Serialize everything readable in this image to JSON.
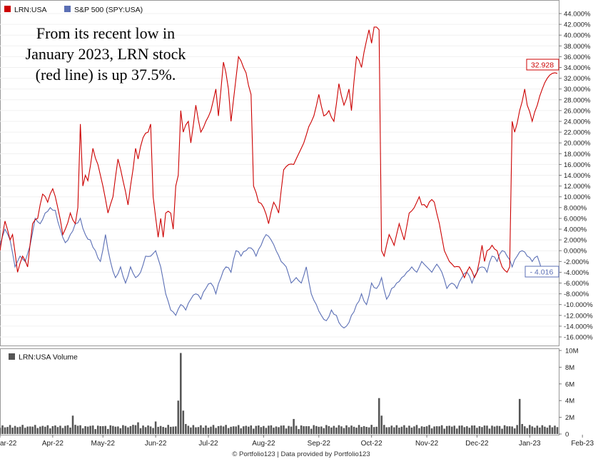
{
  "chart_data": {
    "type": "line",
    "annotation": [
      "From its recent low in",
      "January 2023, LRN stock",
      "(red line) is up 37.5%."
    ],
    "footer": "© Portfolio123 | Data provided by Portfolio123",
    "colors": {
      "lrn": "#cc0000",
      "spy": "#5b6fb5",
      "volume": "#555555"
    },
    "y_axis": {
      "min": -16,
      "max": 44,
      "step": 2,
      "unit": "%",
      "side": "right",
      "tick_labels": [
        "44.000%",
        "42.000%",
        "40.000%",
        "38.000%",
        "36.000%",
        "34.000%",
        "32.000%",
        "30.000%",
        "28.000%",
        "26.000%",
        "24.000%",
        "22.000%",
        "20.000%",
        "18.000%",
        "16.000%",
        "14.000%",
        "12.000%",
        "10.000%",
        "8.000%",
        "6.000%",
        "4.000%",
        "2.000%",
        "0.000%",
        "-2.000%",
        "-4.000%",
        "-6.000%",
        "-8.000%",
        "-10.000%",
        "-12.000%",
        "-14.000%",
        "-16.000%"
      ]
    },
    "x_tick_labels": [
      "Mar-22",
      "Apr-22",
      "May-22",
      "Jun-22",
      "Jul-22",
      "Aug-22",
      "Sep-22",
      "Oct-22",
      "Nov-22",
      "Dec-22",
      "Jan-23",
      "Feb-23"
    ],
    "x_tick_index": [
      0,
      21,
      41,
      62,
      83,
      105,
      127,
      148,
      170,
      190,
      211,
      232
    ],
    "legend": [
      {
        "name": "LRN:USA",
        "color": "#cc0000"
      },
      {
        "name": "S&P 500 (SPY:USA)",
        "color": "#5b6fb5"
      }
    ],
    "last_value_labels": {
      "lrn": "32.928",
      "spy": "- 4.016"
    },
    "series": [
      {
        "name": "LRN:USA",
        "key": "lrn",
        "anchors": [
          [
            0,
            0
          ],
          [
            2,
            5.5
          ],
          [
            4,
            2
          ],
          [
            5,
            3
          ],
          [
            7,
            -4
          ],
          [
            9,
            -1
          ],
          [
            11,
            -3
          ],
          [
            13,
            5
          ],
          [
            15,
            6
          ],
          [
            17,
            10.5
          ],
          [
            19,
            9
          ],
          [
            21,
            11.5
          ],
          [
            23,
            8
          ],
          [
            25,
            3
          ],
          [
            26,
            4
          ],
          [
            28,
            7
          ],
          [
            30,
            5
          ],
          [
            31,
            8
          ],
          [
            32,
            23.5
          ],
          [
            33,
            12
          ],
          [
            34,
            14
          ],
          [
            35,
            13
          ],
          [
            37,
            19
          ],
          [
            39,
            16
          ],
          [
            40,
            14
          ],
          [
            41,
            12
          ],
          [
            43,
            7
          ],
          [
            45,
            10
          ],
          [
            47,
            17
          ],
          [
            49,
            13
          ],
          [
            51,
            8.5
          ],
          [
            52,
            12
          ],
          [
            54,
            19
          ],
          [
            55,
            17
          ],
          [
            57,
            21
          ],
          [
            59,
            22
          ],
          [
            60,
            23.5
          ],
          [
            61,
            10
          ],
          [
            63,
            2.5
          ],
          [
            64,
            6
          ],
          [
            65,
            2.5
          ],
          [
            66,
            7
          ],
          [
            68,
            7
          ],
          [
            69,
            4
          ],
          [
            70,
            12
          ],
          [
            71,
            14
          ],
          [
            72,
            26
          ],
          [
            73,
            22
          ],
          [
            75,
            24
          ],
          [
            76,
            20
          ],
          [
            78,
            27
          ],
          [
            80,
            22
          ],
          [
            82,
            24
          ],
          [
            84,
            26
          ],
          [
            86,
            30
          ],
          [
            87,
            25
          ],
          [
            89,
            35
          ],
          [
            90,
            33
          ],
          [
            91,
            30
          ],
          [
            92,
            24
          ],
          [
            93,
            28
          ],
          [
            94,
            32
          ],
          [
            95,
            36
          ],
          [
            97,
            34
          ],
          [
            98,
            33
          ],
          [
            100,
            29
          ],
          [
            101,
            12
          ],
          [
            103,
            9
          ],
          [
            105,
            8
          ],
          [
            107,
            5
          ],
          [
            109,
            9
          ],
          [
            111,
            7
          ],
          [
            113,
            15
          ],
          [
            115,
            16
          ],
          [
            117,
            16
          ],
          [
            119,
            18
          ],
          [
            121,
            20
          ],
          [
            123,
            23
          ],
          [
            125,
            25
          ],
          [
            127,
            29
          ],
          [
            129,
            25
          ],
          [
            131,
            26
          ],
          [
            133,
            24
          ],
          [
            135,
            31
          ],
          [
            137,
            27
          ],
          [
            139,
            30
          ],
          [
            140,
            26
          ],
          [
            142,
            36
          ],
          [
            144,
            34
          ],
          [
            146,
            39
          ],
          [
            147,
            41
          ],
          [
            148,
            38.5
          ],
          [
            149,
            41.5
          ],
          [
            150,
            41.5
          ],
          [
            151,
            41
          ],
          [
            152,
            0
          ],
          [
            153,
            -1
          ],
          [
            155,
            3
          ],
          [
            157,
            1
          ],
          [
            159,
            5
          ],
          [
            161,
            2
          ],
          [
            163,
            7
          ],
          [
            165,
            8
          ],
          [
            166,
            9
          ],
          [
            167,
            10
          ],
          [
            168,
            8.5
          ],
          [
            170,
            8
          ],
          [
            172,
            9.5
          ],
          [
            173,
            9
          ],
          [
            175,
            5
          ],
          [
            177,
            0
          ],
          [
            179,
            -2
          ],
          [
            181,
            -3
          ],
          [
            183,
            -3
          ],
          [
            185,
            -5
          ],
          [
            187,
            -3
          ],
          [
            189,
            -5
          ],
          [
            190,
            -4
          ],
          [
            192,
            1
          ],
          [
            193,
            -2
          ],
          [
            194,
            0
          ],
          [
            196,
            1
          ],
          [
            198,
            0
          ],
          [
            200,
            -3
          ],
          [
            202,
            -4
          ],
          [
            203,
            -3
          ],
          [
            204,
            24
          ],
          [
            205,
            22
          ],
          [
            207,
            26
          ],
          [
            209,
            30
          ],
          [
            210,
            27
          ],
          [
            212,
            24
          ],
          [
            214,
            27
          ],
          [
            216,
            30
          ],
          [
            218,
            32
          ],
          [
            220,
            32.9
          ],
          [
            222,
            32.9
          ]
        ]
      },
      {
        "name": "S&P 500 (SPY:USA)",
        "key": "spy",
        "anchors": [
          [
            0,
            1
          ],
          [
            2,
            4
          ],
          [
            4,
            2
          ],
          [
            6,
            -3
          ],
          [
            8,
            -1
          ],
          [
            10,
            -2
          ],
          [
            12,
            1
          ],
          [
            14,
            6
          ],
          [
            16,
            5
          ],
          [
            18,
            7
          ],
          [
            20,
            8
          ],
          [
            22,
            7.5
          ],
          [
            24,
            4
          ],
          [
            26,
            1.5
          ],
          [
            28,
            3
          ],
          [
            30,
            5
          ],
          [
            32,
            6
          ],
          [
            34,
            3
          ],
          [
            36,
            2
          ],
          [
            38,
            0
          ],
          [
            40,
            -2
          ],
          [
            42,
            3
          ],
          [
            44,
            -2
          ],
          [
            46,
            -5
          ],
          [
            48,
            -3
          ],
          [
            50,
            -6
          ],
          [
            52,
            -3
          ],
          [
            54,
            -5
          ],
          [
            56,
            -4
          ],
          [
            58,
            -1
          ],
          [
            60,
            -1
          ],
          [
            62,
            0
          ],
          [
            64,
            -3
          ],
          [
            66,
            -8
          ],
          [
            68,
            -11
          ],
          [
            70,
            -12
          ],
          [
            72,
            -10
          ],
          [
            74,
            -11
          ],
          [
            76,
            -9
          ],
          [
            78,
            -8
          ],
          [
            80,
            -9
          ],
          [
            82,
            -7
          ],
          [
            84,
            -6
          ],
          [
            86,
            -8
          ],
          [
            88,
            -5
          ],
          [
            90,
            -3
          ],
          [
            92,
            -4
          ],
          [
            94,
            0
          ],
          [
            96,
            -1
          ],
          [
            98,
            0
          ],
          [
            100,
            0.5
          ],
          [
            102,
            -1
          ],
          [
            104,
            1
          ],
          [
            106,
            3
          ],
          [
            108,
            2
          ],
          [
            110,
            0
          ],
          [
            112,
            -2
          ],
          [
            114,
            -3
          ],
          [
            116,
            -6
          ],
          [
            118,
            -5
          ],
          [
            120,
            -6
          ],
          [
            122,
            -3
          ],
          [
            124,
            -8
          ],
          [
            126,
            -10
          ],
          [
            128,
            -12
          ],
          [
            130,
            -13
          ],
          [
            132,
            -11
          ],
          [
            134,
            -12
          ],
          [
            136,
            -14
          ],
          [
            138,
            -14
          ],
          [
            140,
            -12
          ],
          [
            142,
            -10
          ],
          [
            144,
            -8
          ],
          [
            146,
            -10
          ],
          [
            148,
            -6
          ],
          [
            150,
            -7
          ],
          [
            152,
            -5
          ],
          [
            154,
            -9
          ],
          [
            156,
            -7
          ],
          [
            158,
            -6
          ],
          [
            160,
            -5
          ],
          [
            162,
            -4
          ],
          [
            164,
            -3
          ],
          [
            166,
            -4
          ],
          [
            168,
            -2
          ],
          [
            170,
            -3
          ],
          [
            172,
            -4
          ],
          [
            174,
            -2.5
          ],
          [
            176,
            -4
          ],
          [
            178,
            -7
          ],
          [
            180,
            -6
          ],
          [
            182,
            -7
          ],
          [
            184,
            -5
          ],
          [
            186,
            -4
          ],
          [
            188,
            -6
          ],
          [
            190,
            -4
          ],
          [
            192,
            -3
          ],
          [
            194,
            -4
          ],
          [
            196,
            -1
          ],
          [
            198,
            -2
          ],
          [
            200,
            0
          ],
          [
            202,
            -1
          ],
          [
            204,
            -3
          ],
          [
            206,
            -1
          ],
          [
            208,
            0
          ],
          [
            210,
            -1
          ],
          [
            212,
            -2
          ],
          [
            214,
            -1
          ],
          [
            216,
            -4
          ],
          [
            218,
            -4
          ],
          [
            220,
            -4
          ],
          [
            222,
            -4.016
          ]
        ]
      }
    ],
    "volume": {
      "label": "LRN:USA Volume",
      "unit": "M",
      "y_min": 0,
      "y_max": 10,
      "tick_labels": [
        "10M",
        "8M",
        "6M",
        "4M",
        "2M",
        "0"
      ],
      "spikes": [
        [
          29,
          2.2
        ],
        [
          30,
          1.1
        ],
        [
          53,
          1.1
        ],
        [
          55,
          1.4
        ],
        [
          62,
          1.5
        ],
        [
          71,
          4
        ],
        [
          72,
          9.7
        ],
        [
          73,
          2.8
        ],
        [
          74,
          1.2
        ],
        [
          88,
          1
        ],
        [
          117,
          1.8
        ],
        [
          151,
          4.3
        ],
        [
          152,
          2.2
        ],
        [
          207,
          4.2
        ],
        [
          208,
          1.2
        ]
      ],
      "base": 0.55
    }
  }
}
